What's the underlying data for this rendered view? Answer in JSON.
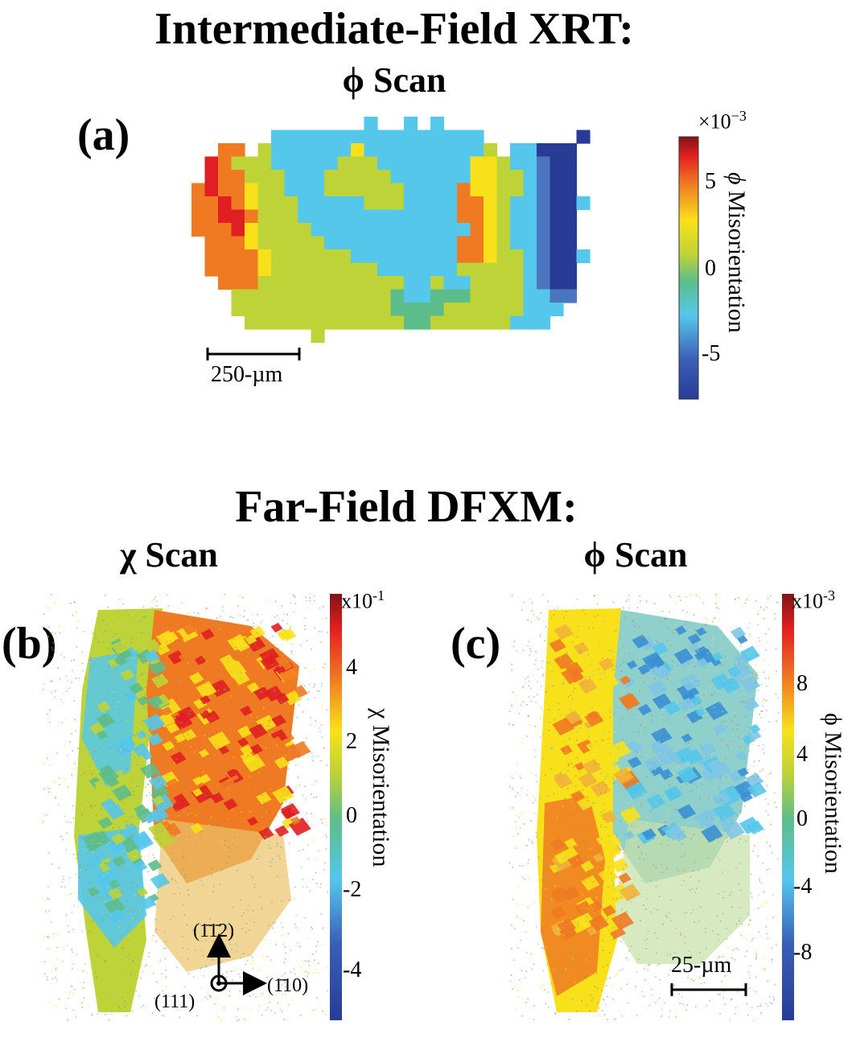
{
  "top": {
    "title": "Intermediate-Field XRT:",
    "subtitle": "ϕ Scan",
    "panel_label": "(a)",
    "scale_bar": "250-µm",
    "colorbar": {
      "multiplier": "×10",
      "multiplier_exp": "−3",
      "label_symbol": "ϕ",
      "label_text": "Misorientation",
      "ticks": [
        "5",
        "0",
        "-5"
      ],
      "range": [
        -7.5,
        7.5
      ]
    }
  },
  "bottom": {
    "title": "Far-Field DFXM:",
    "panel_b": {
      "subtitle": "χ Scan",
      "panel_label": "(b)",
      "colorbar": {
        "multiplier": "x10",
        "multiplier_exp": "-1",
        "label": "χ Misorientation",
        "ticks": [
          "4",
          "2",
          "0",
          "-2",
          "-4"
        ],
        "range": [
          -5,
          5
        ]
      },
      "axes": {
        "up": "(1̄1̄2)",
        "right": "(1̄10)",
        "out": "(111)"
      }
    },
    "panel_c": {
      "subtitle": "ϕ Scan",
      "panel_label": "(c)",
      "scale_bar": "25-µm",
      "colorbar": {
        "multiplier": "x10",
        "multiplier_exp": "-3",
        "label": "ϕ Misorientation",
        "ticks": [
          "8",
          "4",
          "0",
          "-4",
          "-8"
        ],
        "range": [
          -12,
          12
        ]
      }
    }
  },
  "colors": {
    "dark_red": "#7f1416",
    "red": "#e11e21",
    "orange": "#f07a22",
    "yellow": "#f8e11a",
    "yellow_green": "#bdd337",
    "green": "#5dbd8a",
    "cyan": "#55c7eb",
    "blue": "#4a76bf",
    "dark_blue": "#283c96"
  }
}
